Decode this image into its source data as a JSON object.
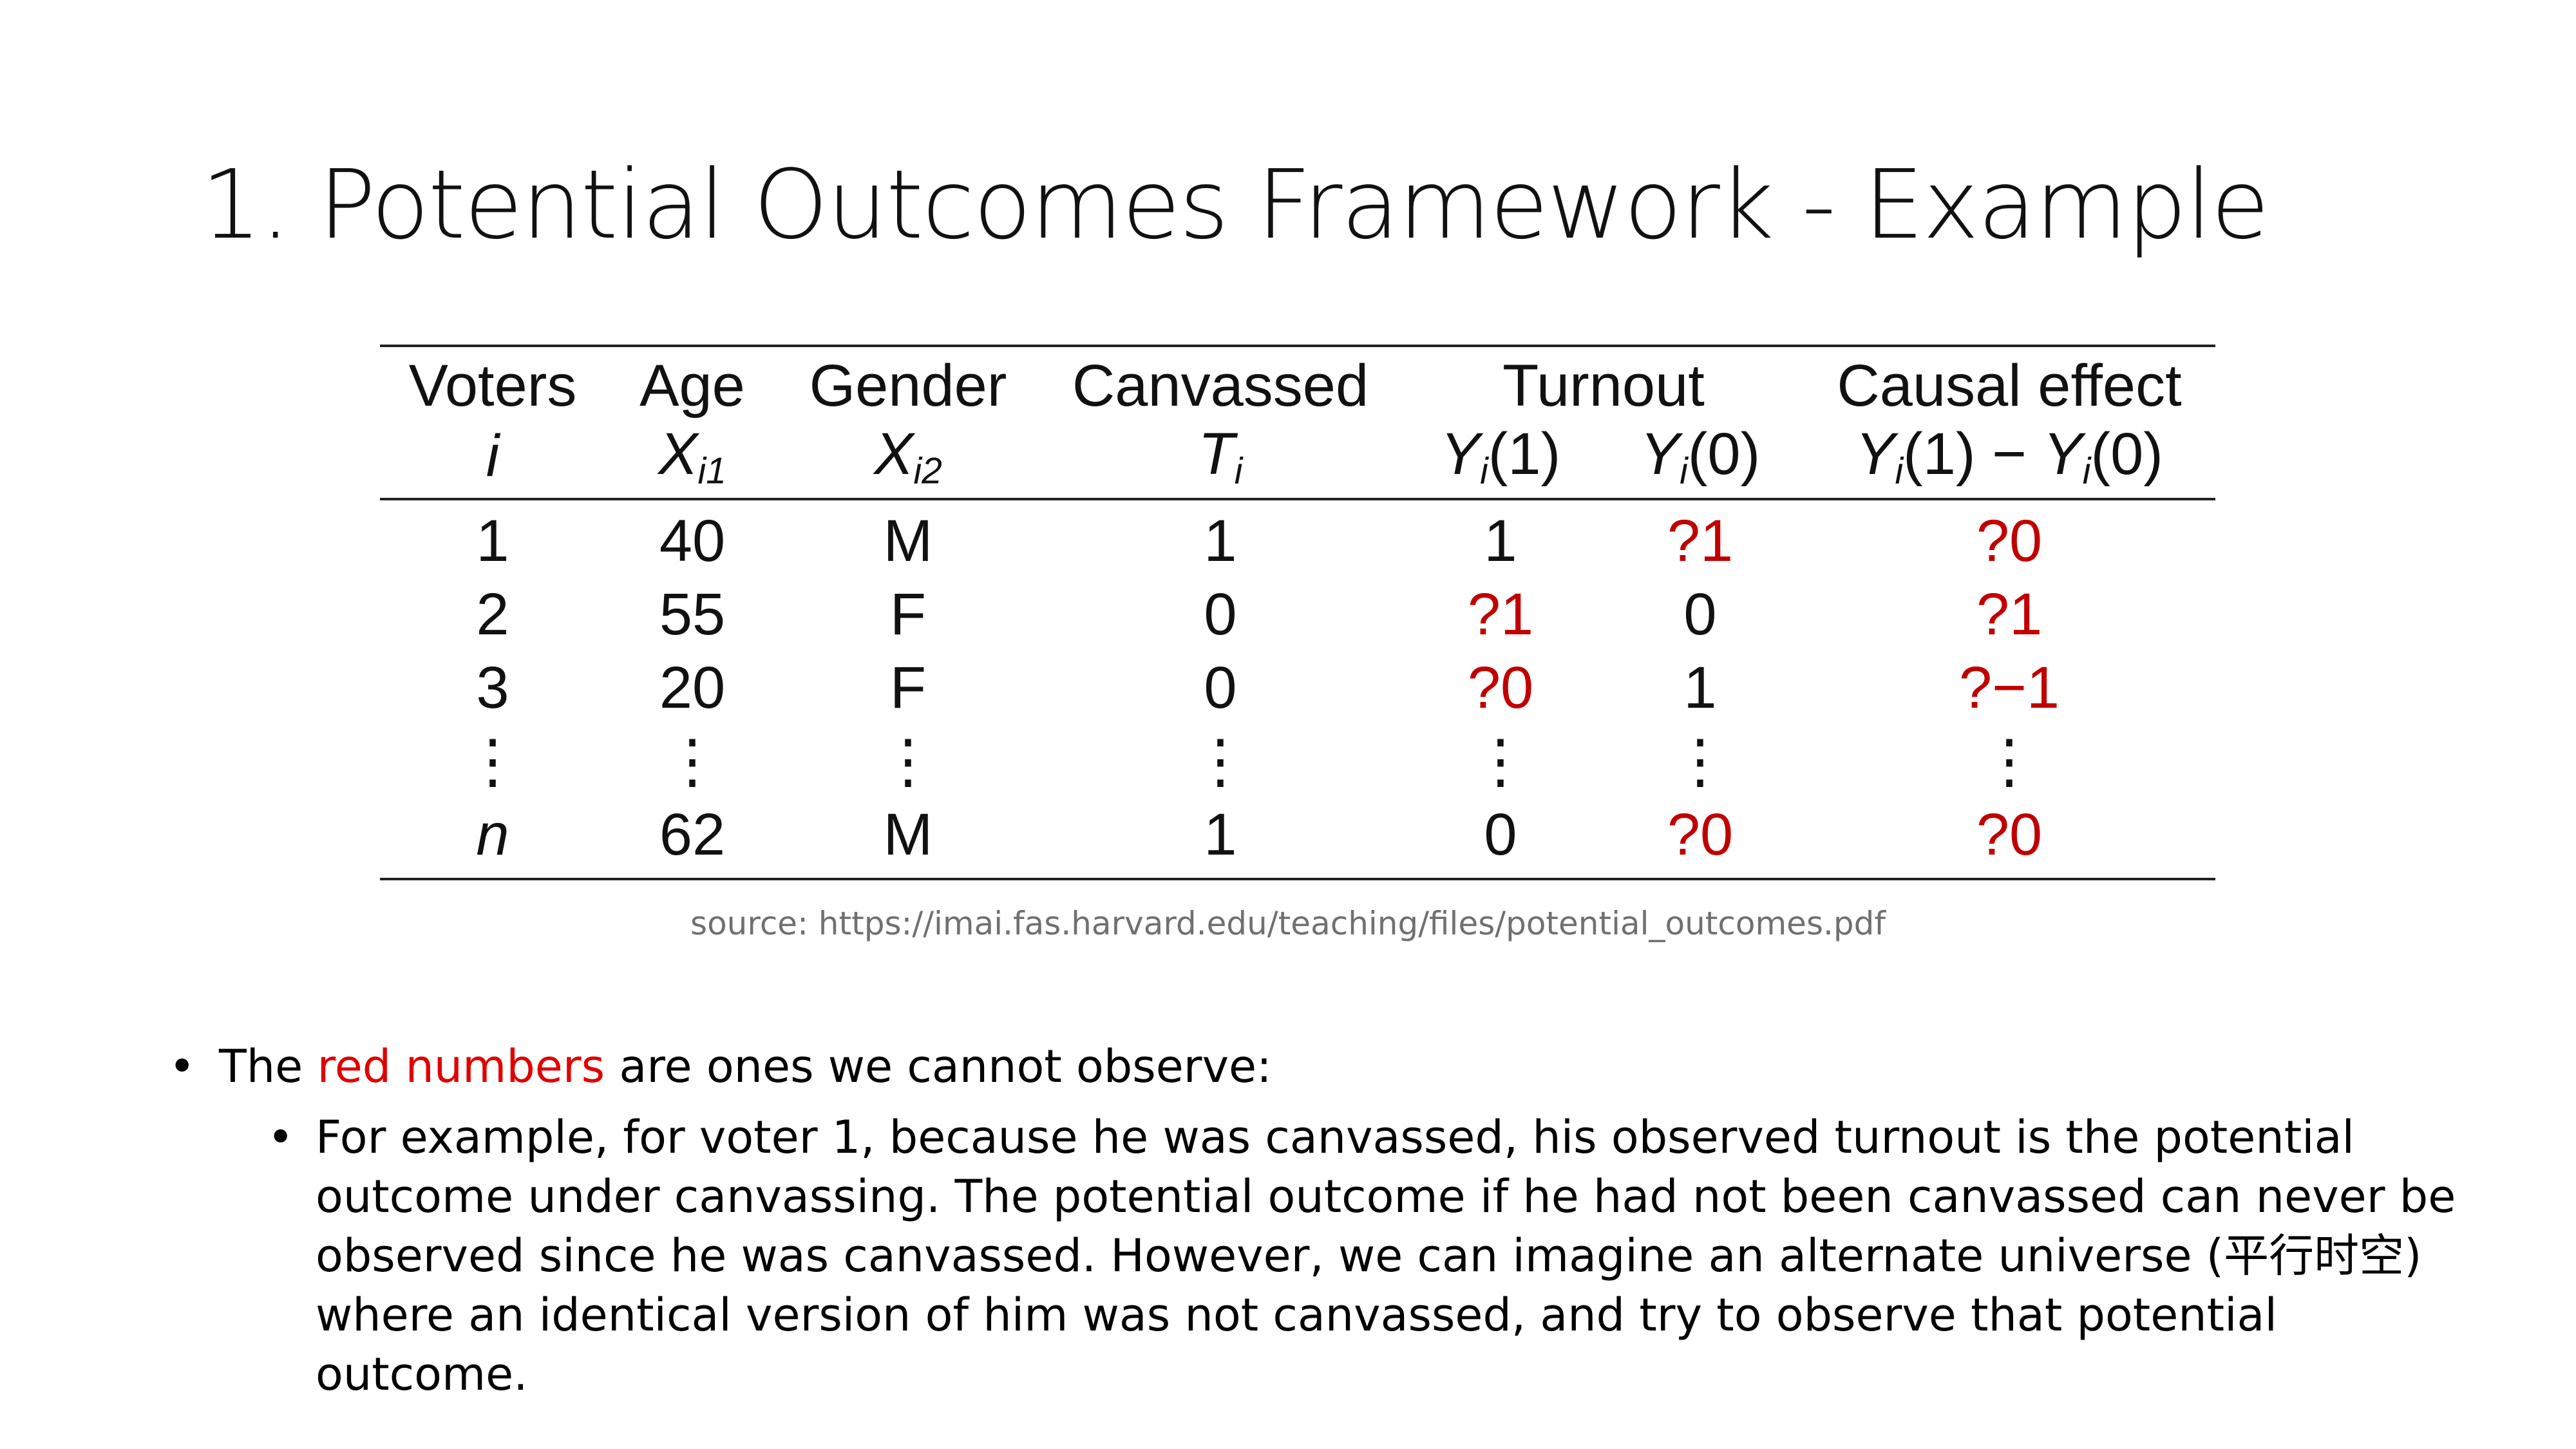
{
  "title": "1. Potential Outcomes Framework - Example",
  "table": {
    "headers": {
      "voters": "Voters",
      "age": "Age",
      "gender": "Gender",
      "canvassed": "Canvassed",
      "turnout": "Turnout",
      "causal": "Causal effect"
    },
    "subheaders": {
      "voters": "i",
      "age_var": "X",
      "age_sub": "i1",
      "gender_var": "X",
      "gender_sub": "i2",
      "canvassed_var": "T",
      "canvassed_sub": "i",
      "y1_var": "Y",
      "y1_sub": "i",
      "y1_arg": "(1)",
      "y0_var": "Y",
      "y0_sub": "i",
      "y0_arg": "(0)",
      "effect_var_a": "Y",
      "effect_sub_a": "i",
      "effect_arg_a": "(1) − ",
      "effect_var_b": "Y",
      "effect_sub_b": "i",
      "effect_arg_b": "(0)"
    },
    "rows": [
      {
        "voter": "1",
        "age": "40",
        "gender": "M",
        "canvassed": "1",
        "y1": "1",
        "y0": "?1",
        "effect": "?0"
      },
      {
        "voter": "2",
        "age": "55",
        "gender": "F",
        "canvassed": "0",
        "y1": "?1",
        "y0": "0",
        "effect": "?1"
      },
      {
        "voter": "3",
        "age": "20",
        "gender": "F",
        "canvassed": "0",
        "y1": "?0",
        "y0": "1",
        "effect": "?−1"
      },
      {
        "voter": "⋮",
        "age": "⋮",
        "gender": "⋮",
        "canvassed": "⋮",
        "y1": "⋮",
        "y0": "⋮",
        "effect": "⋮"
      },
      {
        "voter": "n",
        "age": "62",
        "gender": "M",
        "canvassed": "1",
        "y1": "0",
        "y0": "?0",
        "effect": "?0"
      }
    ],
    "unobserved_color": "#c00000"
  },
  "source": "source: https://imai.fas.harvard.edu/teaching/files/potential_outcomes.pdf",
  "bullets": {
    "b1_dot": "•",
    "b1_pre": "The ",
    "b1_red": "red numbers",
    "b1_post": " are ones we cannot observe:",
    "b1_red_color": "#e00000",
    "b2_dot": "•",
    "b2_text": "For example, for voter 1, because he was canvassed, his observed turnout is the potential outcome under canvassing. The potential outcome if he had not been canvassed can never be observed since he was canvassed. However, we can imagine an alternate universe (平行时空) where an identical version of him was not canvassed, and try to observe that potential outcome."
  }
}
